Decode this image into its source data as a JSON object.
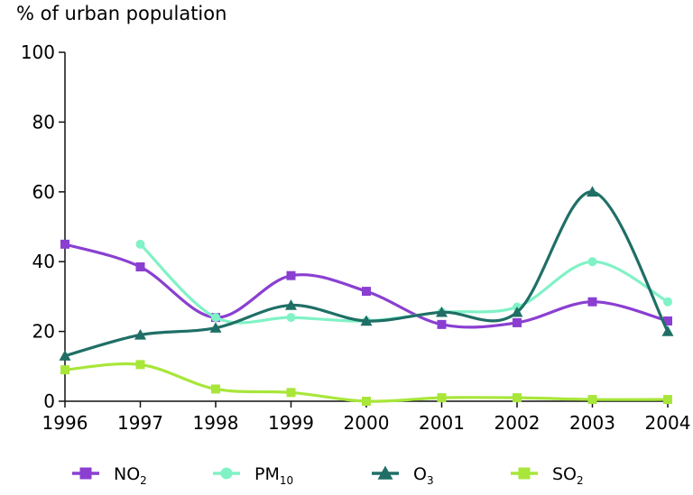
{
  "chart_data": {
    "type": "line",
    "title": "",
    "ylabel": "% of urban population",
    "xlabel": "",
    "x": [
      "1996",
      "1997",
      "1998",
      "1999",
      "2000",
      "2001",
      "2002",
      "2003",
      "2004"
    ],
    "ylim": [
      0,
      100
    ],
    "yticks": [
      "0",
      "20",
      "40",
      "60",
      "80",
      "100"
    ],
    "grid": false,
    "legend_position": "bottom",
    "series": [
      {
        "name": "NO",
        "name_sub": "2",
        "color": "#8a3fd1",
        "marker": "square",
        "values": [
          45,
          38.5,
          24,
          36,
          31.5,
          22,
          22.5,
          28.5,
          23
        ]
      },
      {
        "name": "PM",
        "name_sub": "10",
        "color": "#80f2c6",
        "marker": "circle",
        "values": [
          null,
          45,
          24,
          24,
          23,
          25.5,
          27,
          40,
          28.5
        ]
      },
      {
        "name": "O",
        "name_sub": "3",
        "color": "#1f6f66",
        "marker": "triangle",
        "values": [
          13,
          19,
          21,
          27.5,
          23,
          25.5,
          25.5,
          60,
          20
        ]
      },
      {
        "name": "SO",
        "name_sub": "2",
        "color": "#a8e63a",
        "marker": "square",
        "values": [
          9,
          10.5,
          3.5,
          2.5,
          0,
          1,
          1,
          0.5,
          0.5
        ]
      }
    ]
  }
}
